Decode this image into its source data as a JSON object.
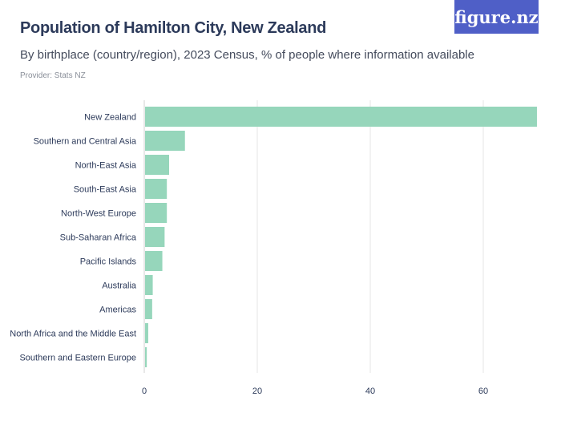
{
  "header": {
    "title": "Population of Hamilton City, New Zealand",
    "subtitle": "By birthplace (country/region), 2023 Census, % of people where information available",
    "provider": "Provider: Stats NZ",
    "logo": "figure.nz"
  },
  "colors": {
    "bar": "#96d6bb",
    "logo_bg": "#4f5fc7",
    "grid": "#e5e5e5"
  },
  "chart_data": {
    "type": "bar",
    "orientation": "horizontal",
    "categories": [
      "New Zealand",
      "Southern and Central Asia",
      "North-East Asia",
      "South-East Asia",
      "North-West Europe",
      "Sub-Saharan Africa",
      "Pacific Islands",
      "Australia",
      "Americas",
      "North Africa and the Middle East",
      "Southern and Eastern Europe"
    ],
    "values": [
      69.5,
      7.2,
      4.4,
      4.0,
      4.0,
      3.6,
      3.2,
      1.5,
      1.4,
      0.7,
      0.45
    ],
    "xlim": [
      0,
      70
    ],
    "xticks": [
      0,
      20,
      40,
      60
    ],
    "grid": true,
    "xlabel": "",
    "ylabel": ""
  }
}
